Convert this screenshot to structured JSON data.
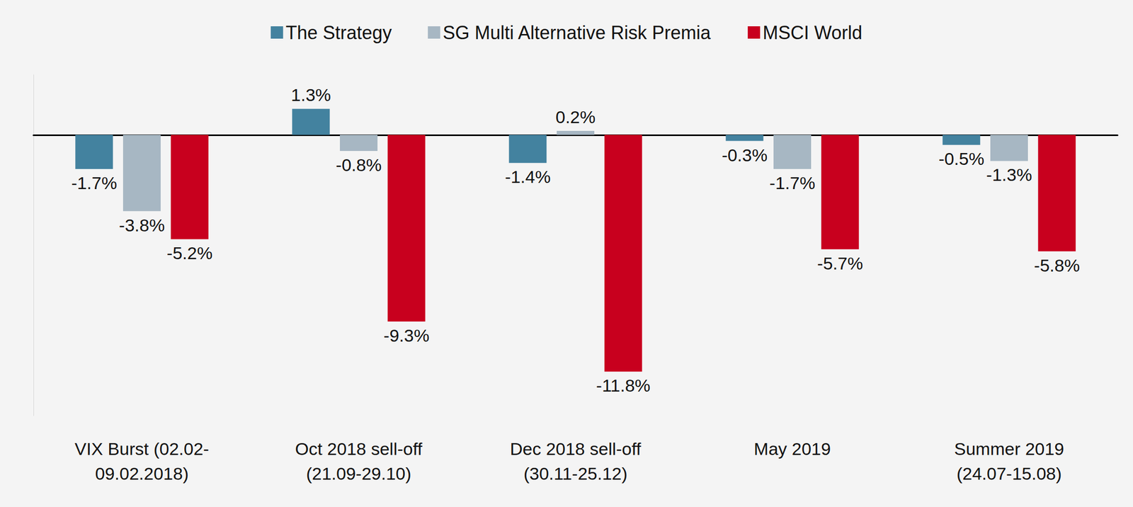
{
  "chart_data": {
    "type": "bar",
    "categories": [
      "VIX Burst (02.02-\n09.02.2018)",
      "Oct 2018 sell-off\n(21.09-29.10)",
      "Dec 2018 sell-off\n(30.11-25.12)",
      "May 2019",
      "Summer 2019\n(24.07-15.08)"
    ],
    "series": [
      {
        "name": "The Strategy",
        "color": "#43829f",
        "values": [
          -1.7,
          1.3,
          -1.4,
          -0.3,
          -0.5
        ],
        "value_labels": [
          "-1.7%",
          "1.3%",
          "-1.4%",
          "-0.3%",
          "-0.5%"
        ]
      },
      {
        "name": "SG Multi Alternative Risk Premia",
        "color": "#a7b7c3",
        "values": [
          -3.8,
          -0.8,
          0.2,
          -1.7,
          -1.3
        ],
        "value_labels": [
          "-3.8%",
          "-0.8%",
          "0.2%",
          "-1.7%",
          "-1.3%"
        ]
      },
      {
        "name": "MSCI World",
        "color": "#c8001e",
        "values": [
          -5.2,
          -9.3,
          -11.8,
          -5.7,
          -5.8
        ],
        "value_labels": [
          "-5.2%",
          "-9.3%",
          "-11.8%",
          "-5.7%",
          "-5.8%"
        ]
      }
    ],
    "ylim": [
      -14,
      3
    ],
    "yticks": [
      0
    ],
    "grid": false,
    "legend": "top",
    "data_labels": true,
    "tick_labels": "x"
  }
}
